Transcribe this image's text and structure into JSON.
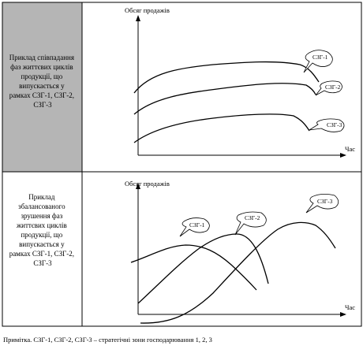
{
  "colors": {
    "left_panel_top": "#b5b5b5",
    "left_panel_bottom": "#ffffff",
    "line": "#000000"
  },
  "top_section": {
    "description_lines": [
      "Приклад співпадання",
      "фаз життєвих циклів",
      "продукції, що",
      "випускається у",
      "рамках СЗГ-1, СЗГ-2,",
      "СЗГ-3"
    ],
    "y_axis_label": "Обсяг продажів",
    "x_axis_label": "Час",
    "tags": [
      "СЗГ-1",
      "СЗГ-2",
      "СЗГ-3"
    ]
  },
  "bottom_section": {
    "description_lines": [
      "Приклад",
      "збалансованого",
      "зрушення фаз",
      "життєвих циклів",
      "продукції, що",
      "випускається у",
      "рамках СЗГ-1, СЗГ-2,",
      "СЗГ-3"
    ],
    "y_axis_label": "Обсяг продажів",
    "x_axis_label": "Час",
    "tags": [
      "СЗГ-1",
      "СЗГ-2",
      "СЗГ-3"
    ]
  },
  "note": "Примітка. СЗГ-1, СЗГ-2, СЗГ-3 – стратегічні зони господарювання 1, 2, 3"
}
